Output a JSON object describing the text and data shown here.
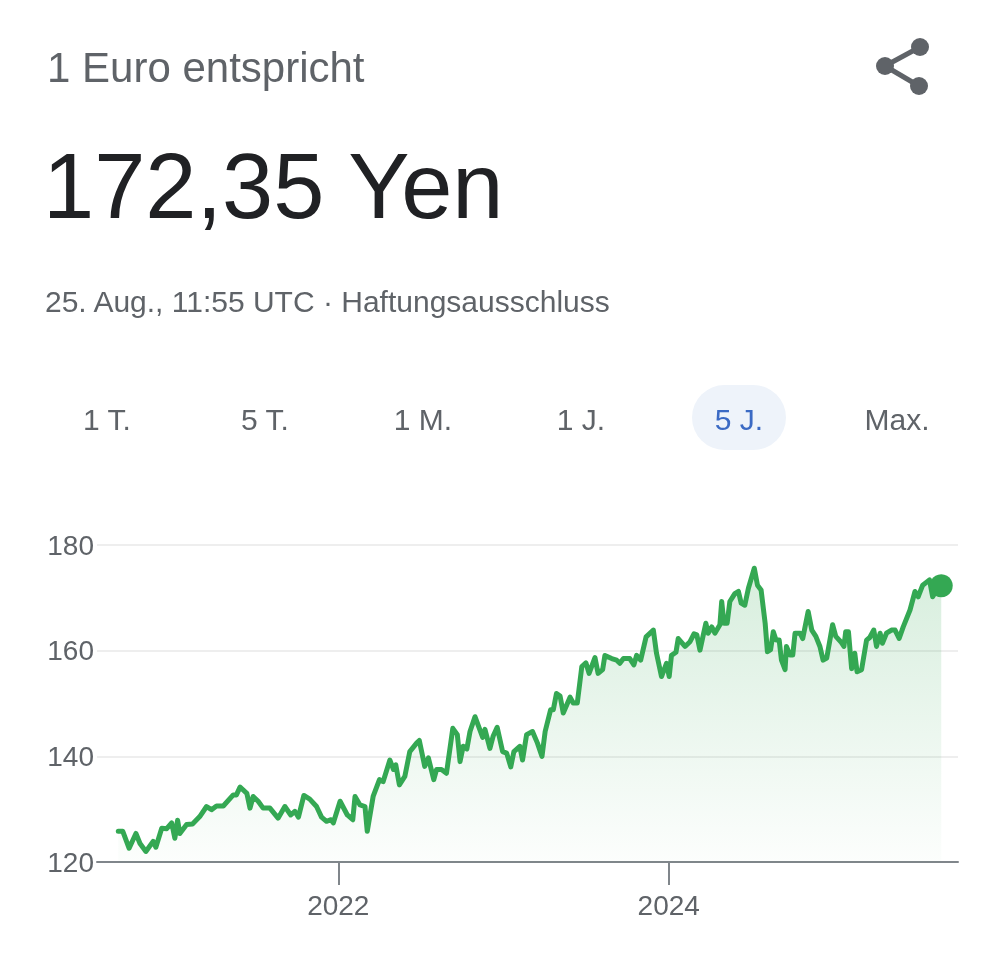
{
  "chart_data": {
    "type": "area",
    "title": "1 Euro entspricht",
    "subtitle": "172,35 Yen",
    "annotations": [
      "25. Aug., 11:55 UTC · Haftungsausschluss",
      "1 T.",
      "5 T.",
      "1 M.",
      "1 J.",
      "5 J.",
      "Max."
    ],
    "x": [
      "2020-09-02",
      "2020-09-12",
      "2020-09-26",
      "2020-10-11",
      "2020-10-20",
      "2020-11-02",
      "2020-11-18",
      "2020-11-24",
      "2020-12-07",
      "2020-12-18",
      "2020-12-29",
      "2021-01-05",
      "2021-01-11",
      "2021-01-16",
      "2021-01-31",
      "2021-02-13",
      "2021-03-01",
      "2021-03-16",
      "2021-03-27",
      "2021-04-07",
      "2021-04-22",
      "2021-05-14",
      "2021-05-21",
      "2021-05-29",
      "2021-06-13",
      "2021-06-20",
      "2021-06-27",
      "2021-07-08",
      "2021-07-19",
      "2021-08-03",
      "2021-08-21",
      "2021-09-05",
      "2021-09-18",
      "2021-09-27",
      "2021-10-05",
      "2021-10-17",
      "2021-10-30",
      "2021-11-14",
      "2021-11-25",
      "2021-12-06",
      "2021-12-16",
      "2021-12-21",
      "2022-01-05",
      "2022-01-21",
      "2022-02-02",
      "2022-02-07",
      "2022-02-18",
      "2022-03-01",
      "2022-03-06",
      "2022-03-19",
      "2022-04-02",
      "2022-04-10",
      "2022-04-25",
      "2022-05-03",
      "2022-05-08",
      "2022-05-16",
      "2022-05-28",
      "2022-06-08",
      "2022-06-23",
      "2022-06-29",
      "2022-07-11",
      "2022-07-19",
      "2022-07-31",
      "2022-08-06",
      "2022-08-17",
      "2022-08-28",
      "2022-09-11",
      "2022-09-21",
      "2022-09-27",
      "2022-10-04",
      "2022-10-12",
      "2022-10-19",
      "2022-10-30",
      "2022-11-16",
      "2022-11-21",
      "2022-12-02",
      "2022-12-09",
      "2022-12-18",
      "2022-12-30",
      "2023-01-08",
      "2023-01-17",
      "2023-01-24",
      "2023-02-06",
      "2023-02-12",
      "2023-02-21",
      "2023-03-06",
      "2023-03-17",
      "2023-03-27",
      "2023-04-03",
      "2023-04-15",
      "2023-04-21",
      "2023-04-28",
      "2023-05-06",
      "2023-05-13",
      "2023-05-28",
      "2023-06-04",
      "2023-06-13",
      "2023-06-23",
      "2023-07-02",
      "2023-07-09",
      "2023-07-22",
      "2023-07-29",
      "2023-08-08",
      "2023-08-13",
      "2023-08-28",
      "2023-09-08",
      "2023-09-15",
      "2023-09-23",
      "2023-10-07",
      "2023-10-16",
      "2023-10-22",
      "2023-10-31",
      "2023-11-12",
      "2023-11-28",
      "2023-12-05",
      "2023-12-16",
      "2023-12-27",
      "2024-01-02",
      "2024-01-07",
      "2024-01-17",
      "2024-01-22",
      "2024-02-06",
      "2024-02-17",
      "2024-02-26",
      "2024-03-03",
      "2024-03-10",
      "2024-03-23",
      "2024-03-28",
      "2024-04-05",
      "2024-04-12",
      "2024-04-23",
      "2024-04-27",
      "2024-05-02",
      "2024-05-09",
      "2024-05-15",
      "2024-05-26",
      "2024-06-03",
      "2024-06-09",
      "2024-06-17",
      "2024-06-25",
      "2024-07-08",
      "2024-07-15",
      "2024-07-23",
      "2024-08-01",
      "2024-08-06",
      "2024-08-13",
      "2024-08-19",
      "2024-08-25",
      "2024-09-01",
      "2024-09-06",
      "2024-09-14",
      "2024-09-17",
      "2024-09-25",
      "2024-10-01",
      "2024-10-06",
      "2024-10-17",
      "2024-10-23",
      "2024-11-04",
      "2024-11-12",
      "2024-11-21",
      "2024-11-30",
      "2024-12-07",
      "2024-12-15",
      "2024-12-28",
      "2025-01-04",
      "2025-01-15",
      "2025-01-22",
      "2025-01-26",
      "2025-02-01",
      "2025-02-08",
      "2025-02-15",
      "2025-02-20",
      "2025-03-02",
      "2025-03-13",
      "2025-03-20",
      "2025-03-29",
      "2025-04-04",
      "2025-04-12",
      "2025-04-17",
      "2025-04-26",
      "2025-05-07",
      "2025-05-15",
      "2025-05-24",
      "2025-06-02",
      "2025-06-17",
      "2025-06-28",
      "2025-07-05",
      "2025-07-15",
      "2025-07-30",
      "2025-08-06",
      "2025-08-15",
      "2025-08-25"
    ],
    "series": [
      {
        "color": "#34a853",
        "values": [
          125.8,
          125.8,
          122.6,
          125.4,
          123.5,
          122.0,
          123.9,
          122.8,
          126.4,
          126.3,
          127.4,
          124.5,
          127.9,
          125.4,
          127.1,
          127.2,
          128.6,
          130.5,
          129.9,
          130.6,
          130.6,
          132.7,
          132.7,
          134.2,
          133.0,
          130.2,
          132.4,
          131.5,
          130.2,
          130.2,
          128.3,
          130.5,
          128.9,
          129.6,
          128.5,
          132.6,
          131.9,
          130.5,
          128.5,
          127.7,
          128.0,
          127.4,
          131.5,
          128.9,
          128.0,
          132.4,
          130.8,
          130.5,
          125.8,
          132.4,
          135.6,
          135.2,
          139.3,
          137.5,
          138.4,
          134.6,
          136.2,
          140.9,
          142.5,
          143.0,
          138.1,
          139.7,
          135.6,
          137.5,
          137.5,
          136.8,
          145.3,
          144.1,
          139.0,
          141.9,
          141.4,
          144.7,
          147.5,
          143.6,
          145.1,
          141.5,
          143.8,
          145.5,
          140.9,
          140.6,
          138.0,
          140.9,
          141.9,
          139.3,
          144.1,
          144.7,
          142.5,
          140.0,
          144.7,
          148.8,
          148.8,
          151.9,
          151.4,
          148.2,
          151.2,
          150.1,
          150.1,
          157.0,
          157.7,
          155.7,
          158.7,
          155.7,
          156.4,
          159.1,
          158.5,
          158.2,
          157.6,
          158.5,
          158.5,
          157.3,
          159.1,
          158.2,
          162.6,
          163.9,
          159.5,
          155.1,
          157.6,
          155.1,
          159.1,
          159.7,
          162.3,
          160.8,
          161.7,
          163.2,
          163.0,
          160.1,
          165.2,
          163.3,
          164.5,
          163.3,
          164.9,
          169.3,
          165.2,
          165.2,
          169.3,
          170.8,
          171.2,
          169.0,
          168.6,
          171.8,
          175.6,
          172.4,
          171.5,
          165.2,
          159.8,
          160.2,
          163.6,
          162.0,
          162.0,
          158.2,
          156.4,
          160.8,
          159.2,
          159.2,
          163.3,
          163.3,
          162.3,
          167.4,
          163.9,
          162.7,
          160.8,
          158.2,
          158.6,
          164.9,
          162.7,
          161.7,
          160.8,
          163.6,
          163.6,
          156.6,
          159.5,
          156.0,
          156.4,
          162.0,
          162.5,
          163.9,
          160.8,
          163.3,
          161.4,
          163.3,
          163.9,
          163.9,
          162.3,
          164.5,
          167.7,
          171.2,
          170.2,
          172.4,
          173.4,
          170.2,
          171.5,
          172.3
        ]
      },
      {
        "type": "scatter",
        "x": [
          "2025-08-25"
        ],
        "values": [
          172.3
        ],
        "color": "#34a853",
        "marker": "circle"
      }
    ],
    "xlim": [
      "2020-07-17",
      "2025-10-01"
    ],
    "xticks": [
      "2022",
      "2024"
    ],
    "ylim": [
      120,
      180
    ],
    "yticks": [
      120,
      140,
      160,
      180
    ],
    "grid": "y",
    "marker": "none"
  }
}
